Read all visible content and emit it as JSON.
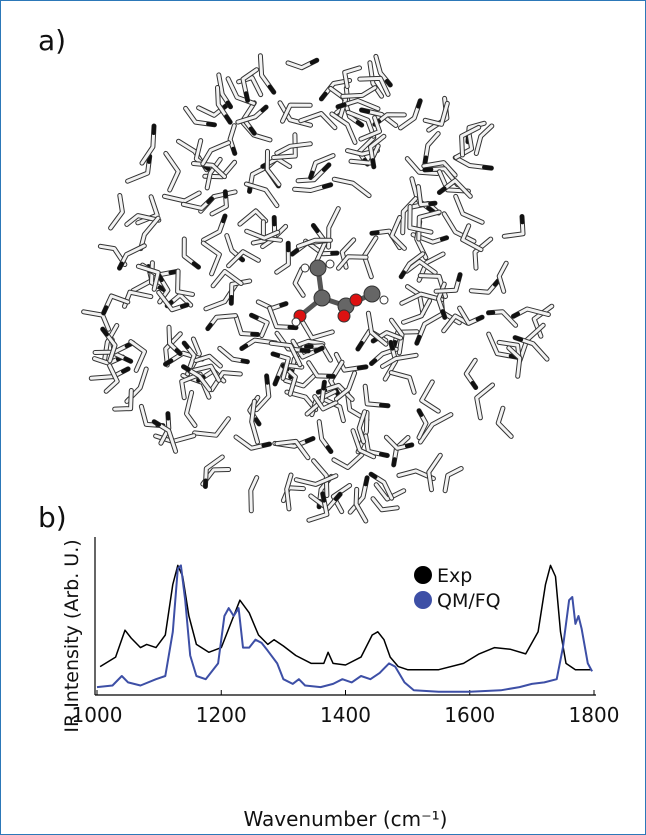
{
  "figure": {
    "panel_a_label": "a)",
    "panel_b_label": "b)"
  },
  "chart_data": {
    "type": "line",
    "xlabel": "Wavenumber (cm⁻¹)",
    "ylabel": "IR Intensity (Arb. U.)",
    "xlim": [
      1000,
      1800
    ],
    "xticks": [
      1000,
      1200,
      1400,
      1600,
      1800
    ],
    "ylim": [
      0,
      1
    ],
    "legend": "upper right",
    "series": [
      {
        "name": "Exp",
        "color": "#000000",
        "x": [
          1005,
          1030,
          1045,
          1055,
          1070,
          1080,
          1095,
          1110,
          1122,
          1130,
          1138,
          1148,
          1160,
          1180,
          1200,
          1215,
          1230,
          1245,
          1260,
          1275,
          1285,
          1300,
          1320,
          1345,
          1365,
          1372,
          1380,
          1400,
          1425,
          1443,
          1452,
          1462,
          1472,
          1485,
          1500,
          1550,
          1590,
          1615,
          1640,
          1665,
          1690,
          1710,
          1722,
          1730,
          1738,
          1746,
          1755,
          1770,
          1795
        ],
        "values": [
          0.18,
          0.24,
          0.41,
          0.36,
          0.3,
          0.32,
          0.3,
          0.38,
          0.7,
          0.82,
          0.75,
          0.5,
          0.32,
          0.27,
          0.3,
          0.45,
          0.6,
          0.52,
          0.38,
          0.32,
          0.35,
          0.31,
          0.25,
          0.2,
          0.2,
          0.27,
          0.2,
          0.19,
          0.24,
          0.38,
          0.4,
          0.35,
          0.24,
          0.18,
          0.16,
          0.16,
          0.2,
          0.26,
          0.3,
          0.29,
          0.26,
          0.4,
          0.7,
          0.82,
          0.75,
          0.4,
          0.2,
          0.16,
          0.16
        ]
      },
      {
        "name": "QM/FQ",
        "color": "#3d4fa6",
        "x": [
          1000,
          1025,
          1040,
          1050,
          1070,
          1095,
          1110,
          1122,
          1130,
          1135,
          1142,
          1150,
          1160,
          1175,
          1195,
          1205,
          1212,
          1220,
          1228,
          1235,
          1245,
          1255,
          1265,
          1275,
          1290,
          1300,
          1315,
          1325,
          1335,
          1360,
          1380,
          1395,
          1410,
          1425,
          1440,
          1455,
          1470,
          1480,
          1495,
          1510,
          1550,
          1600,
          1650,
          1680,
          1700,
          1720,
          1740,
          1750,
          1760,
          1765,
          1770,
          1775,
          1780,
          1790,
          1797
        ],
        "values": [
          0.05,
          0.06,
          0.12,
          0.08,
          0.06,
          0.1,
          0.12,
          0.4,
          0.8,
          0.82,
          0.6,
          0.25,
          0.12,
          0.1,
          0.2,
          0.5,
          0.55,
          0.5,
          0.55,
          0.3,
          0.3,
          0.35,
          0.33,
          0.28,
          0.2,
          0.1,
          0.07,
          0.1,
          0.06,
          0.05,
          0.07,
          0.1,
          0.08,
          0.12,
          0.1,
          0.14,
          0.2,
          0.18,
          0.08,
          0.03,
          0.02,
          0.02,
          0.03,
          0.05,
          0.07,
          0.08,
          0.1,
          0.3,
          0.6,
          0.62,
          0.45,
          0.5,
          0.42,
          0.2,
          0.15
        ]
      }
    ]
  }
}
